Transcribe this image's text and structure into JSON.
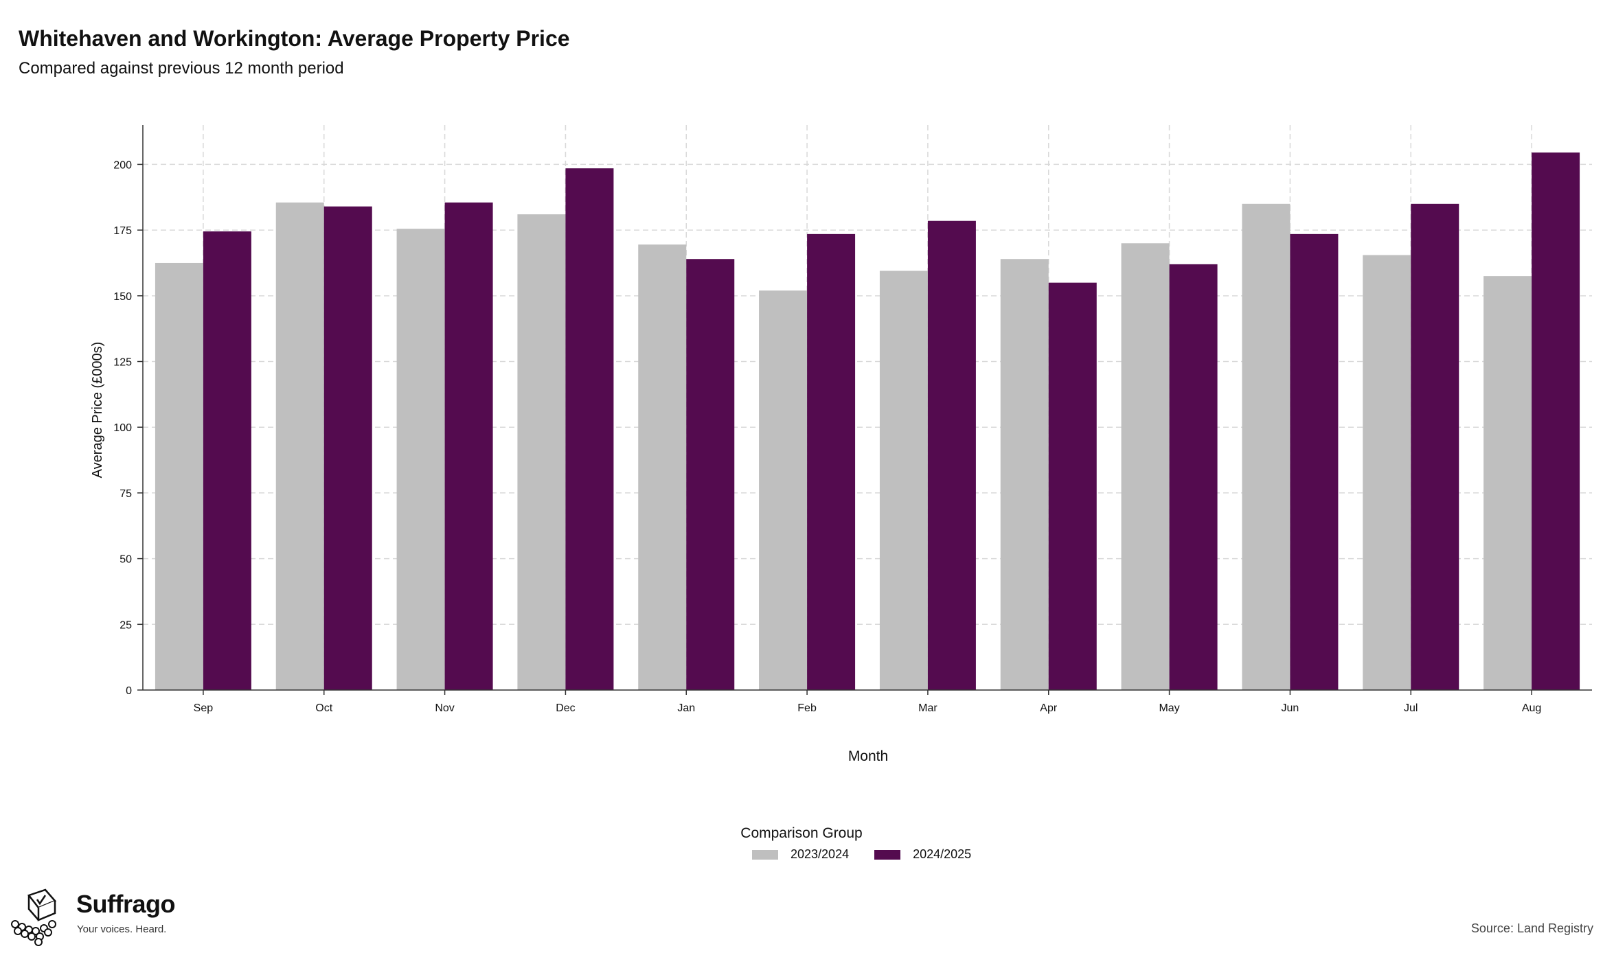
{
  "header": {
    "title": "Whitehaven and Workington: Average Property Price",
    "subtitle": "Compared against previous 12 month period"
  },
  "chart_data": {
    "type": "bar",
    "title": "Whitehaven and Workington: Average Property Price",
    "subtitle": "Compared against previous 12 month period",
    "xlabel": "Month",
    "ylabel": "Average Price (£000s)",
    "categories": [
      "Sep",
      "Oct",
      "Nov",
      "Dec",
      "Jan",
      "Feb",
      "Mar",
      "Apr",
      "May",
      "Jun",
      "Jul",
      "Aug"
    ],
    "series": [
      {
        "name": "2023/2024",
        "color": "#bfbfbf",
        "values": [
          162.5,
          185.5,
          175.5,
          181,
          169.5,
          152,
          159.5,
          164,
          170,
          185,
          165.5,
          157.5
        ]
      },
      {
        "name": "2024/2025",
        "color": "#540b4f",
        "values": [
          174.5,
          184,
          185.5,
          198.5,
          164,
          173.5,
          178.5,
          155,
          162,
          173.5,
          185,
          204.5
        ]
      }
    ],
    "ylim": [
      0,
      215
    ],
    "yticks": [
      0,
      25,
      50,
      75,
      100,
      125,
      150,
      175,
      200
    ],
    "grid": true,
    "legend_title": "Comparison Group",
    "legend_position": "bottom"
  },
  "footer": {
    "brand": "Suffrago",
    "tagline": "Your voices. Heard.",
    "source": "Source: Land Registry"
  }
}
